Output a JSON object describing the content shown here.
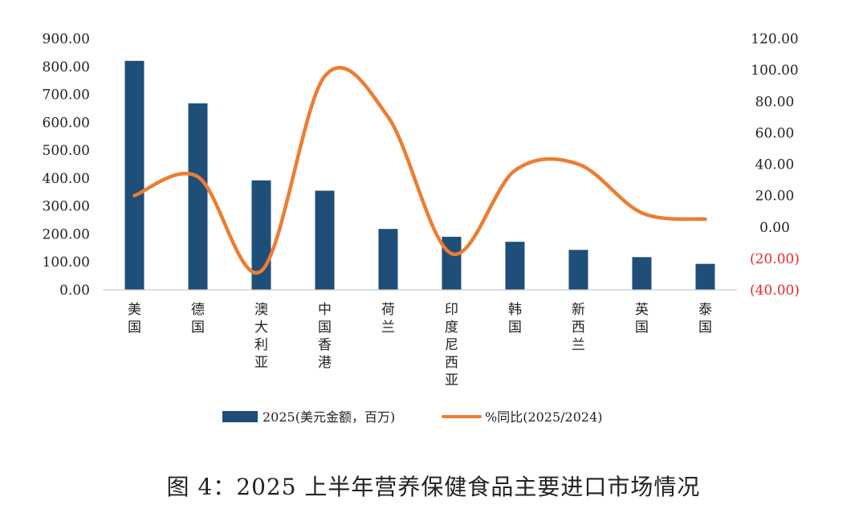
{
  "chart_data": {
    "type": "bar",
    "title": "图 4：2025 上半年营养保健食品主要进口市场情况",
    "categories": [
      "美国",
      "德国",
      "澳大利亚",
      "中国香港",
      "荷兰",
      "印度尼西亚",
      "韩国",
      "新西兰",
      "英国",
      "泰国"
    ],
    "series": [
      {
        "name": "2025(美元金额，百万)",
        "type": "bar",
        "axis": "left",
        "color": "#1f4e79",
        "values": [
          820,
          668,
          392,
          355,
          218,
          190,
          172,
          143,
          117,
          93
        ]
      },
      {
        "name": "%同比(2025/2024)",
        "type": "line",
        "axis": "right",
        "color": "#ed7d31",
        "values": [
          20,
          32,
          -28,
          96,
          70,
          -17,
          36,
          40,
          9,
          5
        ]
      }
    ],
    "y_left": {
      "ylim": [
        0,
        900
      ],
      "ticks": [
        0,
        100,
        200,
        300,
        400,
        500,
        600,
        700,
        800,
        900
      ],
      "tick_labels": [
        "0.00",
        "100.00",
        "200.00",
        "300.00",
        "400.00",
        "500.00",
        "600.00",
        "700.00",
        "800.00",
        "900.00"
      ]
    },
    "y_right": {
      "ylim": [
        -40,
        120
      ],
      "ticks": [
        -40,
        -20,
        0,
        20,
        40,
        60,
        80,
        100,
        120
      ],
      "tick_labels": [
        "(40.00)",
        "(20.00)",
        "0.00",
        "20.00",
        "40.00",
        "60.00",
        "80.00",
        "100.00",
        "120.00"
      ],
      "negative_color": "#e8272a"
    },
    "grid": false,
    "legend_position": "bottom"
  }
}
